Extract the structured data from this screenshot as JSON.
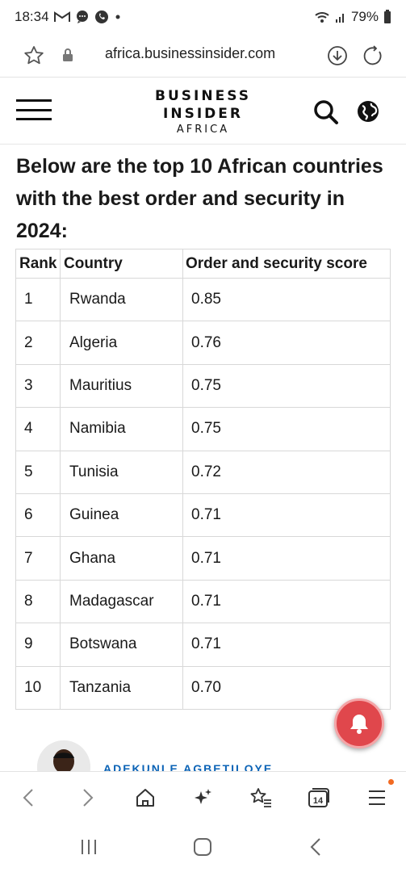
{
  "status_bar": {
    "time": "18:34",
    "battery": "79%",
    "notification_icons": [
      "gmail-icon",
      "chat-icon",
      "whatsapp-icon",
      "dot-icon"
    ],
    "system_icons": [
      "wifi-icon",
      "signal-icon",
      "battery-icon"
    ]
  },
  "address_bar": {
    "url": "africa.businessinsider.com"
  },
  "site_header": {
    "brand_line1": "BUSINESS",
    "brand_line2": "INSIDER",
    "brand_line3": "AFRICA"
  },
  "article": {
    "heading": "Below are the top 10 African countries with the best order and security in 2024:",
    "table": {
      "headers": [
        "Rank",
        "Country",
        "Order and security score"
      ],
      "rows": [
        [
          "1",
          "Rwanda",
          "0.85"
        ],
        [
          "2",
          "Algeria",
          "0.76"
        ],
        [
          "3",
          "Mauritius",
          "0.75"
        ],
        [
          "4",
          "Namibia",
          "0.75"
        ],
        [
          "5",
          "Tunisia",
          "0.72"
        ],
        [
          "6",
          "Guinea",
          "0.71"
        ],
        [
          "7",
          "Ghana",
          "0.71"
        ],
        [
          "8",
          "Madagascar",
          "0.71"
        ],
        [
          "9",
          "Botswana",
          "0.71"
        ],
        [
          "10",
          "Tanzania",
          "0.70"
        ]
      ]
    },
    "author_name": "ADEKUNLE AGBETILOYE"
  },
  "bottom_toolbar": {
    "tab_count": "14"
  },
  "colors": {
    "accent_bell": "#e0474c",
    "author_link": "#0b63b6",
    "notification_dot": "#f26a22"
  }
}
